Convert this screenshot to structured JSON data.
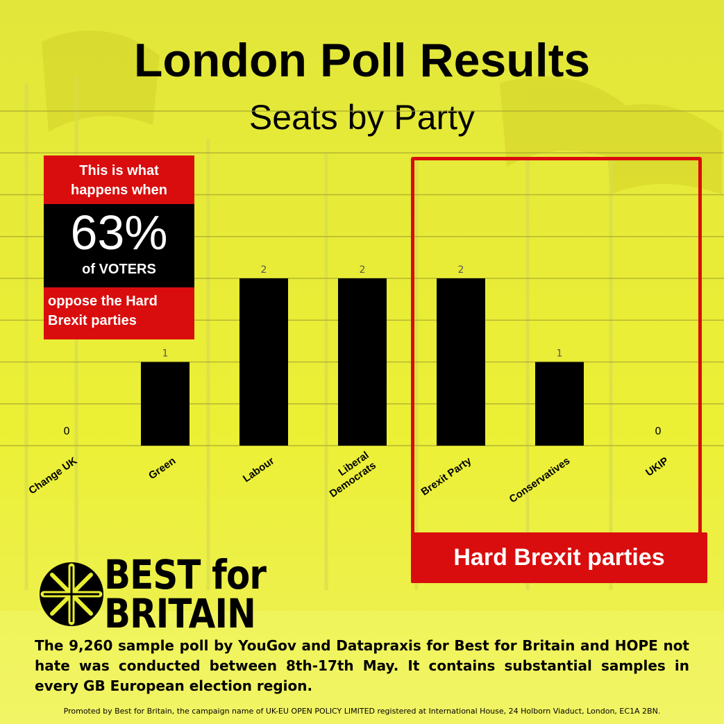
{
  "header": {
    "title": "London Poll Results",
    "subtitle": "Seats by Party"
  },
  "callout": {
    "line1": "This is what",
    "line2": "happens when",
    "percent": "63%",
    "voters": "of VOTERS",
    "line3": "oppose the Hard",
    "line4": "Brexit parties"
  },
  "brexit_box": {
    "label": "Hard Brexit parties"
  },
  "logo": {
    "line1": "BEST for",
    "line2": "BRITAIN"
  },
  "note": "The 9,260 sample poll by YouGov and Datapraxis for Best for Britain and HOPE not hate was conducted between 8th-17th May. It contains substantial samples in every GB European election region.",
  "promo": "Promoted by Best for Britain, the campaign name of UK-EU OPEN POLICY LIMITED registered at International House, 24 Holborn Viaduct, London, EC1A 2BN.",
  "chart_data": {
    "type": "bar",
    "categories": [
      "Change UK",
      "Green",
      "Labour",
      "Liberal Democrats",
      "Brexit Party",
      "Conservatives",
      "UKIP"
    ],
    "category_lines": [
      [
        "Change UK"
      ],
      [
        "Green"
      ],
      [
        "Labour"
      ],
      [
        "Liberal",
        "Democrats"
      ],
      [
        "Brexit Party"
      ],
      [
        "Conservatives"
      ],
      [
        "UKIP"
      ]
    ],
    "values": [
      0,
      1,
      2,
      2,
      2,
      1,
      0
    ],
    "data_labels": [
      "0",
      "1",
      "2",
      "2",
      "2",
      "1",
      "0"
    ],
    "ylim": [
      0,
      4
    ],
    "grid": true,
    "bar_color": "#000000",
    "gridline_color": "#a8a830"
  }
}
